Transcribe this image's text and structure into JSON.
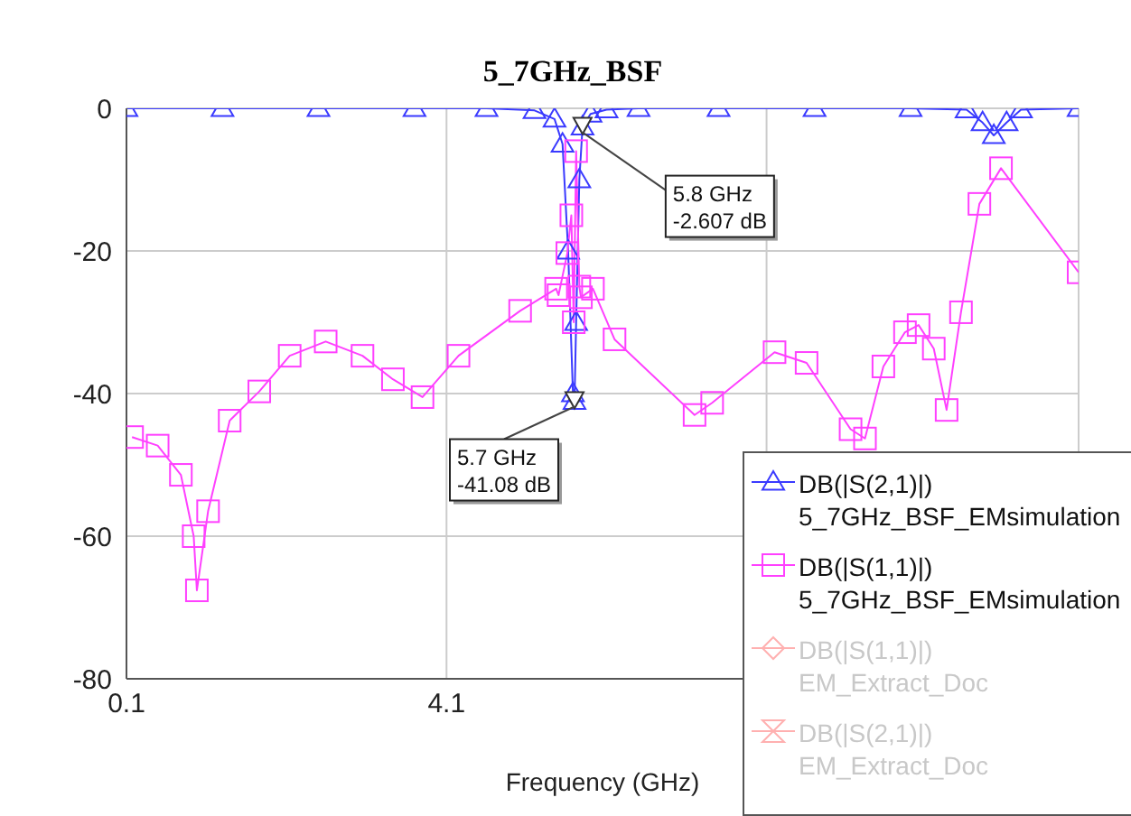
{
  "chart_data": {
    "type": "line",
    "title": "5_7GHz_BSF",
    "xlabel": "Frequency (GHz)",
    "xlim": [
      0.1,
      12
    ],
    "xticks": [
      0.1,
      4.1,
      {
        "value": 8.1,
        "label": null
      }
    ],
    "ylim": [
      -80,
      0
    ],
    "yticks": [
      0,
      -20,
      -40,
      -60,
      -80
    ],
    "grid": true,
    "legend": "bottom right",
    "annotations": [
      {
        "text": "5.8 GHz\n-2.607 dB",
        "x": 5.8,
        "y": -2.607
      },
      {
        "text": "5.7 GHz\n-41.08 dB",
        "x": 5.7,
        "y": -41.08
      }
    ],
    "series": [
      {
        "name": "DB(|S(2,1)|) 5_7GHz_BSF_EMsimulation",
        "color": "#3a3aff",
        "marker": "triangle",
        "x": [
          0.1,
          1.3,
          2.5,
          3.7,
          4.6,
          5.2,
          5.45,
          5.55,
          5.62,
          5.68,
          5.7,
          5.72,
          5.76,
          5.8,
          5.9,
          6.1,
          6.5,
          7.5,
          8.7,
          9.9,
          10.6,
          10.8,
          10.94,
          11.1,
          11.28,
          12
        ],
        "values": [
          0,
          0,
          0,
          0,
          0,
          -0.3,
          -1.5,
          -5,
          -20,
          -40,
          -41.08,
          -30,
          -10,
          -2.607,
          -0.8,
          -0.2,
          0,
          0,
          0,
          0,
          -0.2,
          -2,
          -3.8,
          -2,
          -0.2,
          0
        ]
      },
      {
        "name": "DB(|S(1,1)|) 5_7GHz_BSF_EMsimulation",
        "color": "#ff40ff",
        "marker": "square",
        "x": [
          0.17,
          0.49,
          0.78,
          0.94,
          0.98,
          1.12,
          1.39,
          1.76,
          2.14,
          2.59,
          3.05,
          3.43,
          3.8,
          4.25,
          5.02,
          5.47,
          5.5,
          5.61,
          5.66,
          5.69,
          5.72,
          5.76,
          5.78,
          5.93,
          6.2,
          7.2,
          7.42,
          8.2,
          8.6,
          9.15,
          9.33,
          9.56,
          9.83,
          10.0,
          10.19,
          10.35,
          10.53,
          10.76,
          11.03,
          12
        ],
        "values": [
          -46.1,
          -47.3,
          -51.4,
          -60,
          -67.6,
          -56.5,
          -43.8,
          -39.7,
          -34.7,
          -32.7,
          -34.7,
          -38,
          -40.5,
          -34.7,
          -28.4,
          -25.3,
          -26.2,
          -20.3,
          -15,
          -30,
          -6,
          -25,
          -26.5,
          -25.3,
          -32.4,
          -43,
          -41.3,
          -34.2,
          -35.7,
          -45,
          -46.3,
          -36.2,
          -31.4,
          -30.4,
          -33.7,
          -42.3,
          -28.6,
          -13.4,
          -8.4,
          -23
        ]
      },
      {
        "name": "DB(|S(1,1)|) EM_Extract_Doc",
        "color": "#ffb0b0",
        "marker": "diamond"
      },
      {
        "name": "DB(|S(2,1)|) EM_Extract_Doc",
        "color": "#ffb0b0",
        "marker": "cross"
      }
    ]
  }
}
